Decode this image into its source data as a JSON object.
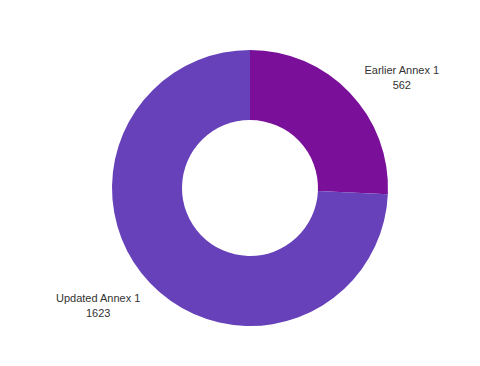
{
  "chart_data": {
    "type": "pie",
    "categories": [
      "Earlier Annex 1",
      "Updated Annex 1"
    ],
    "values": [
      562,
      1623
    ],
    "colors": [
      "#7a0f99",
      "#6741b9"
    ],
    "data_labels": true
  }
}
